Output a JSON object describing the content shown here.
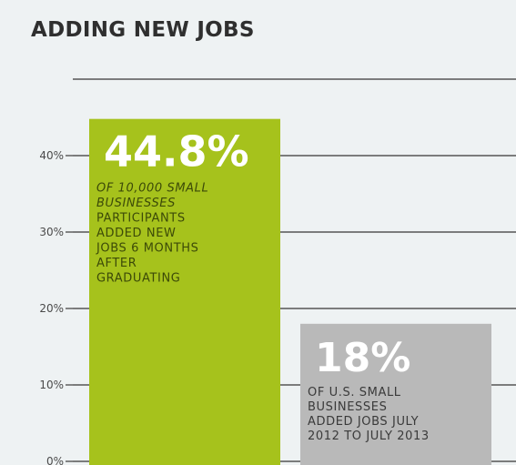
{
  "chart_data": {
    "type": "bar",
    "title": "ADDING NEW JOBS",
    "xlabel": "",
    "ylabel": "",
    "ylim": [
      0,
      50
    ],
    "yticks": [
      {
        "value": 0,
        "label": "0%"
      },
      {
        "value": 10,
        "label": "10%"
      },
      {
        "value": 20,
        "label": "20%"
      },
      {
        "value": 30,
        "label": "30%"
      },
      {
        "value": 40,
        "label": "40%"
      }
    ],
    "grid": true,
    "values": [
      44.8,
      18
    ],
    "bars": [
      {
        "value": 44.8,
        "value_label": "44.8%",
        "description_lines": [
          "OF 10,000 SMALL",
          "BUSINESSES",
          "PARTICIPANTS",
          "ADDED NEW",
          "JOBS 6 MONTHS",
          "AFTER",
          "GRADUATING"
        ],
        "italic_lines": [
          0,
          1
        ],
        "color": "#a6c21c",
        "text_color": "#3c4a08"
      },
      {
        "value": 18,
        "value_label": "18%",
        "description_lines": [
          "OF U.S. SMALL",
          "BUSINESSES",
          "ADDED JOBS JULY",
          "2012 TO JULY 2013"
        ],
        "italic_lines": [],
        "color": "#b9b9b9",
        "text_color": "#3a3a3a"
      }
    ],
    "colors": {
      "background": "#eef2f3",
      "axis": "#555555",
      "grid": "#555555",
      "tick_text": "#4a4a4a"
    }
  }
}
